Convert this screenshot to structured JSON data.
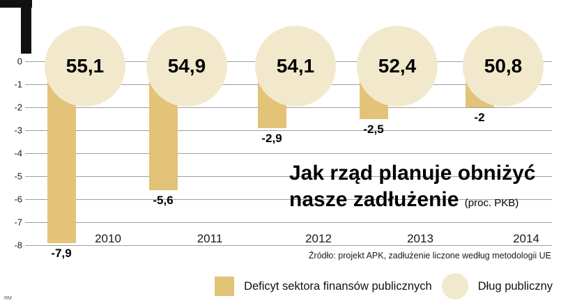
{
  "meta": {
    "credit": "RM"
  },
  "title": {
    "line1": "Jak rząd planuje obniżyć",
    "line2": "nasze zadłużenie",
    "unit_note": "(proc. PKB)"
  },
  "source": "Źródło: projekt APK, zadłużenie liczone według metodologii UE",
  "legend": [
    {
      "swatch": "bar",
      "label": "Deficyt sektora finansów publicznych"
    },
    {
      "swatch": "circle",
      "label": "Dług publiczny"
    }
  ],
  "colors": {
    "bar": "#e2c377",
    "circle": "#f2e9cd",
    "grid": "#9e9e9e",
    "text": "#000000"
  },
  "chart_data": {
    "type": "bar",
    "categories": [
      "2010",
      "2011",
      "2012",
      "2013",
      "2014"
    ],
    "series": [
      {
        "name": "Deficyt sektora finansów publicznych",
        "values": [
          -7.9,
          -5.6,
          -2.9,
          -2.5,
          -2
        ]
      },
      {
        "name": "Dług publiczny",
        "values": [
          55.1,
          54.9,
          54.1,
          52.4,
          50.8
        ]
      }
    ],
    "bar_labels": [
      "-7,9",
      "-5,6",
      "-2,9",
      "-2,5",
      "-2"
    ],
    "circle_labels": [
      "55,1",
      "54,9",
      "54,1",
      "52,4",
      "50,8"
    ],
    "y_axis_ticks": [
      "0",
      "-1",
      "-2",
      "-3",
      "-4",
      "-5",
      "-6",
      "-7",
      "-8"
    ],
    "ylim": [
      -8,
      0
    ],
    "grid": true,
    "legend_position": "bottom",
    "title": "Jak rząd planuje obniżyć nasze zadłużenie (proc. PKB)"
  }
}
